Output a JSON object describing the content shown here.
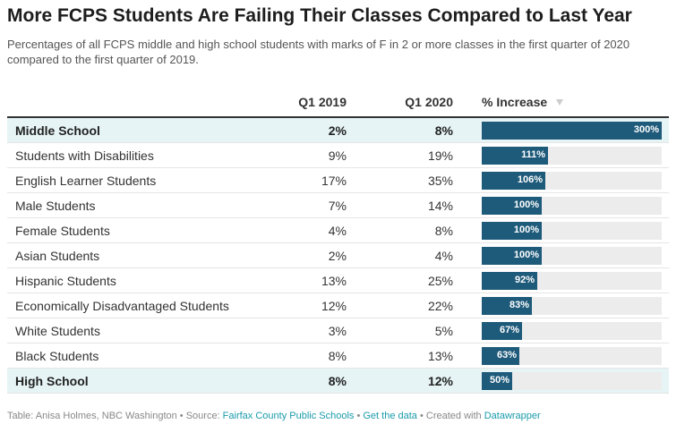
{
  "title": "More FCPS Students Are Failing Their Classes Compared to Last Year",
  "subtitle": "Percentages of all FCPS middle and high school students with marks of F in 2 or more classes in the first quarter of 2020 compared to the first quarter of 2019.",
  "colors": {
    "bar": "#1e5a7a",
    "bar_track": "#ececec",
    "highlight_row": "#e6f4f5",
    "link": "#1a9bab"
  },
  "chart_data": {
    "type": "table",
    "columns": [
      "",
      "Q1 2019",
      "Q1 2020",
      "% Increase"
    ],
    "sort_icon": "sort-down-icon",
    "rows": [
      {
        "label": "Middle School",
        "q1_2019": "2%",
        "q1_2020": "8%",
        "increase": 300,
        "increase_label": "300%",
        "highlight": true
      },
      {
        "label": "Students with Disabilities",
        "q1_2019": "9%",
        "q1_2020": "19%",
        "increase": 111,
        "increase_label": "111%",
        "highlight": false
      },
      {
        "label": "English Learner Students",
        "q1_2019": "17%",
        "q1_2020": "35%",
        "increase": 106,
        "increase_label": "106%",
        "highlight": false
      },
      {
        "label": "Male Students",
        "q1_2019": "7%",
        "q1_2020": "14%",
        "increase": 100,
        "increase_label": "100%",
        "highlight": false
      },
      {
        "label": "Female Students",
        "q1_2019": "4%",
        "q1_2020": "8%",
        "increase": 100,
        "increase_label": "100%",
        "highlight": false
      },
      {
        "label": "Asian Students",
        "q1_2019": "2%",
        "q1_2020": "4%",
        "increase": 100,
        "increase_label": "100%",
        "highlight": false
      },
      {
        "label": "Hispanic Students",
        "q1_2019": "13%",
        "q1_2020": "25%",
        "increase": 92,
        "increase_label": "92%",
        "highlight": false
      },
      {
        "label": "Economically Disadvantaged Students",
        "q1_2019": "12%",
        "q1_2020": "22%",
        "increase": 83,
        "increase_label": "83%",
        "highlight": false
      },
      {
        "label": "White Students",
        "q1_2019": "3%",
        "q1_2020": "5%",
        "increase": 67,
        "increase_label": "67%",
        "highlight": false
      },
      {
        "label": "Black Students",
        "q1_2019": "8%",
        "q1_2020": "13%",
        "increase": 63,
        "increase_label": "63%",
        "highlight": false
      },
      {
        "label": "High School",
        "q1_2019": "8%",
        "q1_2020": "12%",
        "increase": 50,
        "increase_label": "50%",
        "highlight": true
      }
    ],
    "increase_max": 300
  },
  "footer": {
    "byline": "Table: Anisa Holmes, NBC Washington",
    "sep": " • ",
    "source_prefix": "Source: ",
    "source_link": "Fairfax County Public Schools",
    "get_data": "Get the data",
    "created_prefix": "Created with ",
    "created_link": "Datawrapper"
  }
}
